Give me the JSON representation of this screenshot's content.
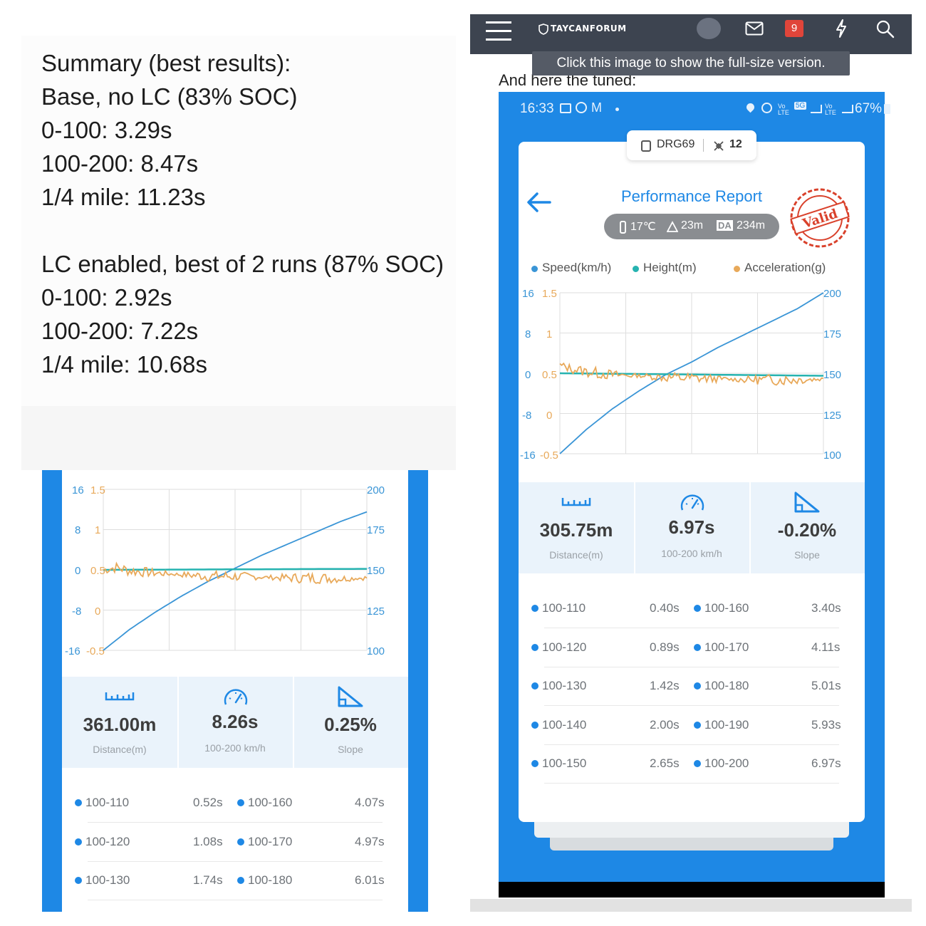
{
  "summary": {
    "lines": [
      "Summary (best results):",
      "Base, no LC (83% SOC)",
      "0-100: 3.29s",
      "100-200: 8.47s",
      "1/4 mile: 11.23s",
      "LC enabled, best of 2 runs (87% SOC)",
      "0-100: 2.92s",
      "100-200: 7.22s",
      "1/4 mile: 10.68s"
    ]
  },
  "forum": {
    "logo_text": "TAYCANFORUM",
    "notification_count": "9",
    "tooltip": "Click this image to show the full-size version.",
    "intro": "And here the tuned:"
  },
  "phone": {
    "time": "16:33",
    "signal_5g": "5G",
    "battery": "67%",
    "device": "DRG69",
    "satellites": "12",
    "title": "Performance Report",
    "temperature": "17℃",
    "altitude": "23m",
    "da_label": "DA",
    "density_altitude": "234m",
    "valid_stamp": "Valid",
    "legend": {
      "speed": "Speed(km/h)",
      "height": "Height(m)",
      "acceleration": "Acceleration(g)"
    }
  },
  "axes": {
    "height_ticks": [
      "16",
      "8",
      "0",
      "-8",
      "-16"
    ],
    "accel_ticks": [
      "1.5",
      "1",
      "0.5",
      "0",
      "-0.5"
    ],
    "speed_ticks": [
      "200",
      "175",
      "150",
      "125",
      "100"
    ]
  },
  "left_report": {
    "stats": [
      {
        "value": "361.00m",
        "label": "Distance(m)"
      },
      {
        "value": "8.26s",
        "label": "100-200 km/h"
      },
      {
        "value": "0.25%",
        "label": "Slope"
      }
    ],
    "splits": [
      {
        "a": "100-110",
        "at": "0.52s",
        "b": "100-160",
        "bt": "4.07s"
      },
      {
        "a": "100-120",
        "at": "1.08s",
        "b": "100-170",
        "bt": "4.97s"
      },
      {
        "a": "100-130",
        "at": "1.74s",
        "b": "100-180",
        "bt": "6.01s"
      }
    ]
  },
  "right_report": {
    "stats": [
      {
        "value": "305.75m",
        "label": "Distance(m)"
      },
      {
        "value": "6.97s",
        "label": "100-200 km/h"
      },
      {
        "value": "-0.20%",
        "label": "Slope"
      }
    ],
    "splits": [
      {
        "a": "100-110",
        "at": "0.40s",
        "b": "100-160",
        "bt": "3.40s"
      },
      {
        "a": "100-120",
        "at": "0.89s",
        "b": "100-170",
        "bt": "4.11s"
      },
      {
        "a": "100-130",
        "at": "1.42s",
        "b": "100-180",
        "bt": "5.01s"
      },
      {
        "a": "100-140",
        "at": "2.00s",
        "b": "100-190",
        "bt": "5.93s"
      },
      {
        "a": "100-150",
        "at": "2.65s",
        "b": "100-200",
        "bt": "6.97s"
      }
    ]
  },
  "colors": {
    "speed": "#3a95d6",
    "height": "#26b3b0",
    "acceleration": "#e8a95a",
    "brand_blue": "#1e88e5",
    "stamp_red": "#d9412b"
  },
  "chart_data": [
    {
      "type": "line",
      "x_unit": "time (0-1 normalized)",
      "series": [
        {
          "name": "Speed(km/h)",
          "x": [
            0,
            0.1,
            0.2,
            0.3,
            0.4,
            0.5,
            0.6,
            0.7,
            0.8,
            0.9,
            1.0
          ],
          "values": [
            100,
            113,
            124,
            134,
            143,
            151,
            159,
            166,
            173,
            180,
            186
          ]
        },
        {
          "name": "Height(m)",
          "x": [
            0,
            1
          ],
          "values": [
            0,
            0.2
          ]
        },
        {
          "name": "Acceleration(g)",
          "x": [
            0,
            0.05,
            0.1,
            0.2,
            0.3,
            0.4,
            0.5,
            0.6,
            0.7,
            0.8,
            0.9,
            1.0
          ],
          "values": [
            0.5,
            0.53,
            0.49,
            0.46,
            0.44,
            0.42,
            0.42,
            0.41,
            0.4,
            0.4,
            0.39,
            0.4
          ]
        }
      ],
      "y_ticks_left_height": [
        16,
        8,
        0,
        -8,
        -16
      ],
      "y_ticks_left_accel": [
        1.5,
        1,
        0.5,
        0,
        -0.5
      ],
      "y_ticks_right_speed": [
        200,
        175,
        150,
        125,
        100
      ],
      "ylim_speed": [
        100,
        200
      ],
      "ylim_height": [
        -16,
        16
      ],
      "ylim_accel": [
        -0.5,
        1.5
      ],
      "grid": true
    },
    {
      "type": "line",
      "x_unit": "time (0-1 normalized)",
      "series": [
        {
          "name": "Speed(km/h)",
          "x": [
            0,
            0.1,
            0.2,
            0.3,
            0.4,
            0.5,
            0.6,
            0.7,
            0.8,
            0.9,
            1.0
          ],
          "values": [
            100,
            115,
            128,
            139,
            149,
            157,
            166,
            174,
            182,
            190,
            200
          ]
        },
        {
          "name": "Height(m)",
          "x": [
            0,
            1
          ],
          "values": [
            0,
            -0.5
          ]
        },
        {
          "name": "Acceleration(g)",
          "x": [
            0,
            0.05,
            0.1,
            0.2,
            0.3,
            0.4,
            0.5,
            0.6,
            0.7,
            0.8,
            0.9,
            1.0
          ],
          "values": [
            0.6,
            0.55,
            0.52,
            0.48,
            0.47,
            0.45,
            0.44,
            0.43,
            0.42,
            0.42,
            0.42,
            0.43
          ]
        }
      ],
      "y_ticks_left_height": [
        16,
        8,
        0,
        -8,
        -16
      ],
      "y_ticks_left_accel": [
        1.5,
        1,
        0.5,
        0,
        -0.5
      ],
      "y_ticks_right_speed": [
        200,
        175,
        150,
        125,
        100
      ],
      "ylim_speed": [
        100,
        200
      ],
      "ylim_height": [
        -16,
        16
      ],
      "ylim_accel": [
        -0.5,
        1.5
      ],
      "grid": true
    }
  ]
}
